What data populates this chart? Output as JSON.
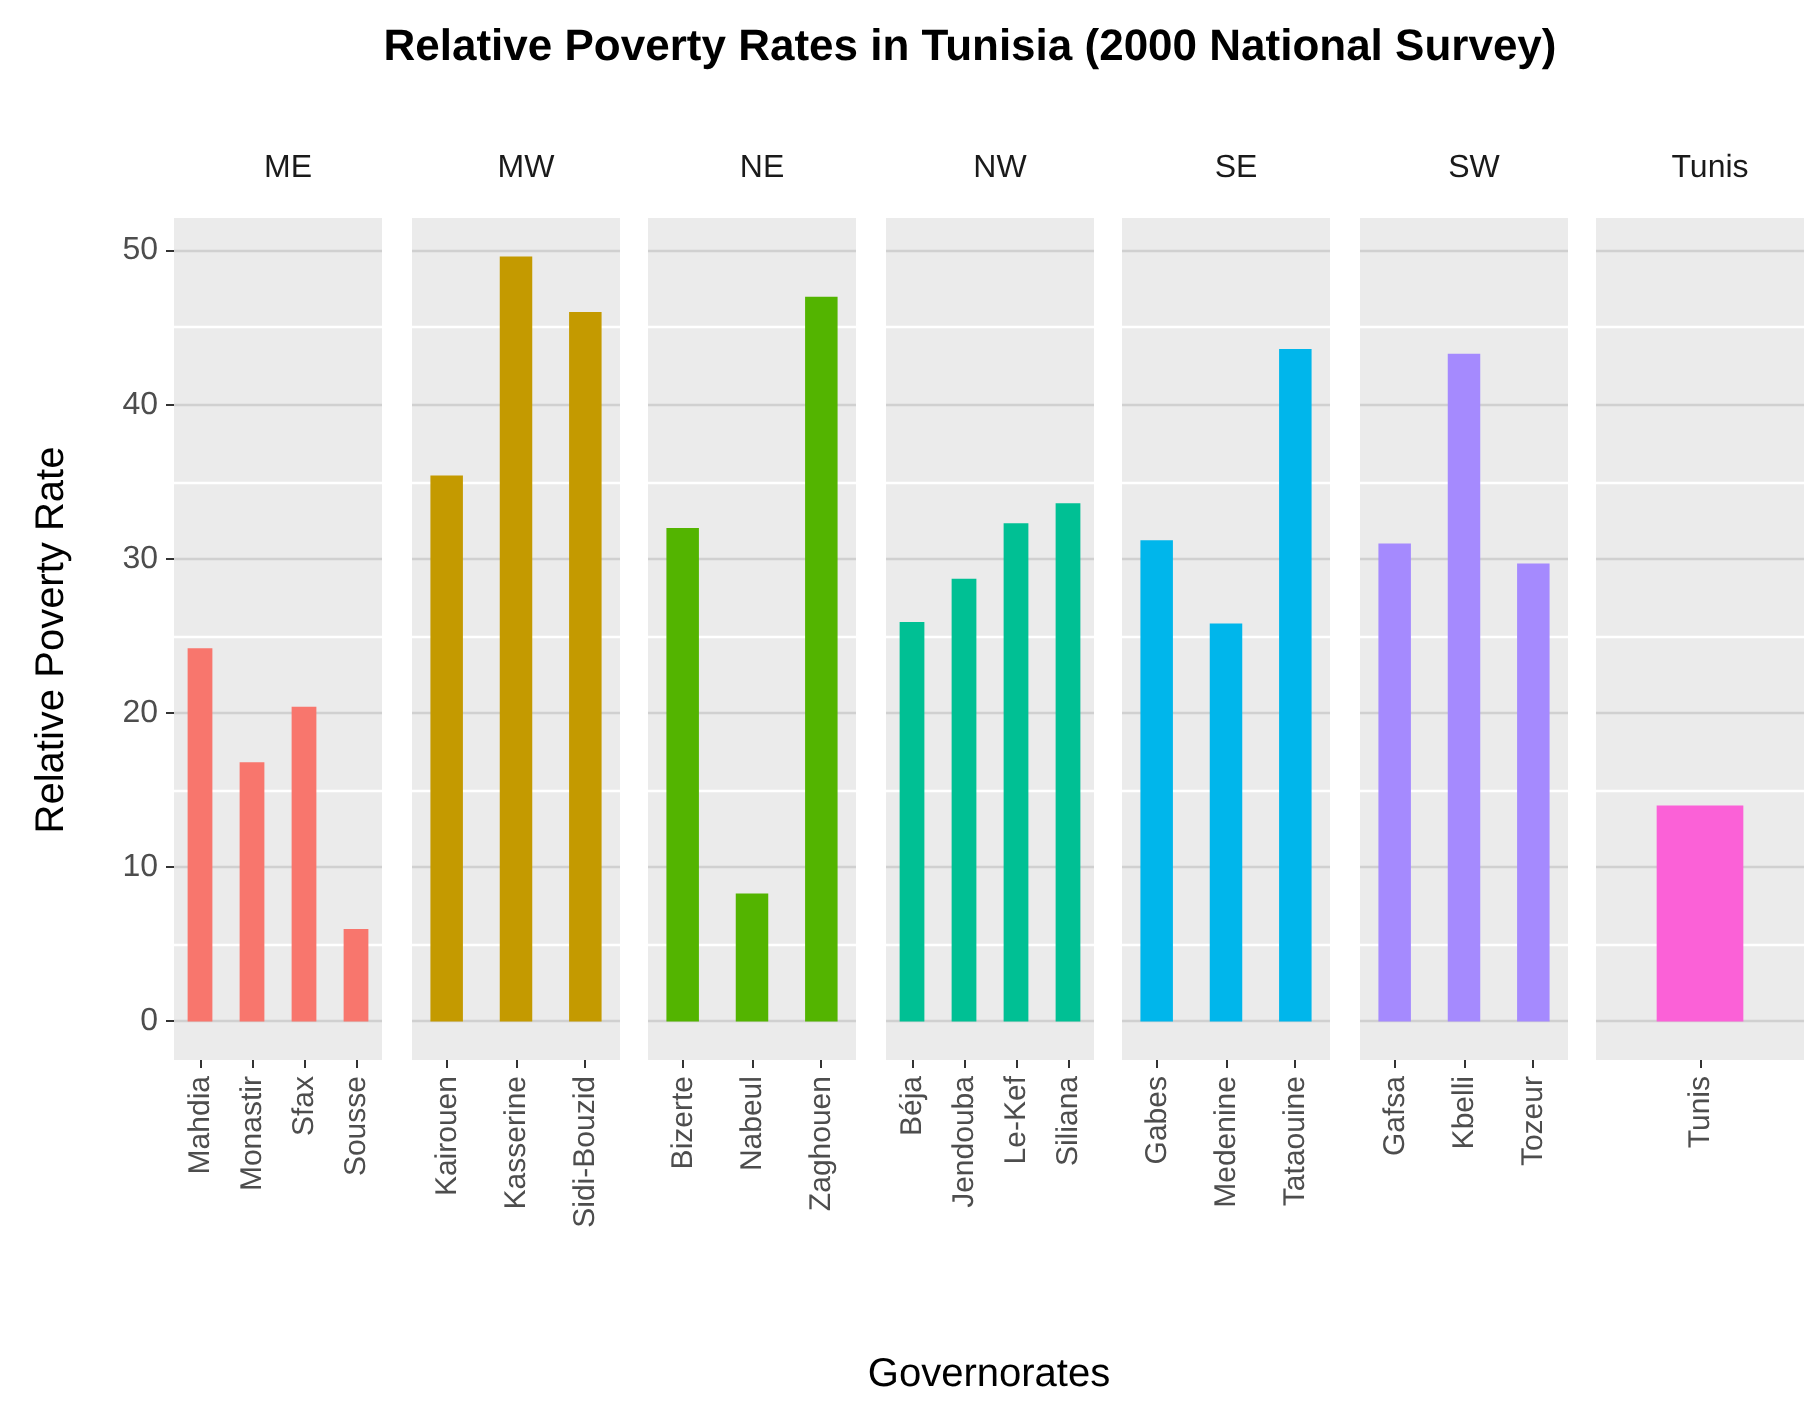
{
  "chart_data": [
    {
      "type": "bar",
      "subtitle": "ME",
      "ylabel": "Relative Poverty Rate",
      "categories": [
        "Mahdia",
        "Monastir",
        "Sfax",
        "Sousse"
      ],
      "values": [
        24.2,
        16.8,
        20.4,
        6.0
      ],
      "color": "#f8766d",
      "ylim": [
        -2.5,
        52.1
      ],
      "yticks": [
        0,
        10,
        20,
        30,
        40,
        50
      ],
      "grid": "y"
    },
    {
      "type": "bar",
      "subtitle": "MW",
      "categories": [
        "Kairouen",
        "Kasserine",
        "Sidi-Bouzid"
      ],
      "values": [
        35.4,
        49.6,
        46.0
      ],
      "color": "#c49a00",
      "ylim": [
        -2.5,
        52.1
      ],
      "yticks": [
        0,
        10,
        20,
        30,
        40,
        50
      ],
      "grid": "y",
      "tick_labels": "x"
    },
    {
      "type": "bar",
      "subtitle": "NE",
      "categories": [
        "Bizerte",
        "Nabeul",
        "Zaghouen"
      ],
      "values": [
        32.0,
        8.3,
        47.0
      ],
      "color": "#53b400",
      "ylim": [
        -2.5,
        52.1
      ],
      "yticks": [
        0,
        10,
        20,
        30,
        40,
        50
      ],
      "grid": "y",
      "tick_labels": "x"
    },
    {
      "type": "bar",
      "title": "Relative Poverty Rates in Tunisia (2000 National Survey)",
      "subtitle": "NW",
      "xlabel": "Governorates",
      "categories": [
        "Béja",
        "Jendouba",
        "Le-Kef",
        "Siliana"
      ],
      "values": [
        25.9,
        28.7,
        32.3,
        33.6
      ],
      "color": "#00c094",
      "ylim": [
        -2.5,
        52.1
      ],
      "yticks": [
        0,
        10,
        20,
        30,
        40,
        50
      ],
      "grid": "y",
      "tick_labels": "x"
    },
    {
      "type": "bar",
      "subtitle": "SE",
      "categories": [
        "Gabes",
        "Medenine",
        "Tataouine"
      ],
      "values": [
        31.2,
        25.8,
        43.6
      ],
      "color": "#00b6eb",
      "ylim": [
        -2.5,
        52.1
      ],
      "yticks": [
        0,
        10,
        20,
        30,
        40,
        50
      ],
      "grid": "y",
      "tick_labels": "x"
    },
    {
      "type": "bar",
      "subtitle": "SW",
      "categories": [
        "Gafsa",
        "Kbelli",
        "Tozeur"
      ],
      "values": [
        31.0,
        43.3,
        29.7
      ],
      "color": "#a58afe",
      "ylim": [
        -2.5,
        52.1
      ],
      "yticks": [
        0,
        10,
        20,
        30,
        40,
        50
      ],
      "grid": "y",
      "tick_labels": "x"
    },
    {
      "type": "bar",
      "subtitle": "Tunis",
      "categories": [
        "Tunis"
      ],
      "values": [
        14.0
      ],
      "color": "#fb61d7",
      "ylim": [
        -2.5,
        52.1
      ],
      "yticks": [
        0,
        10,
        20,
        30,
        40,
        50
      ],
      "grid": "y",
      "tick_labels": "x"
    }
  ]
}
